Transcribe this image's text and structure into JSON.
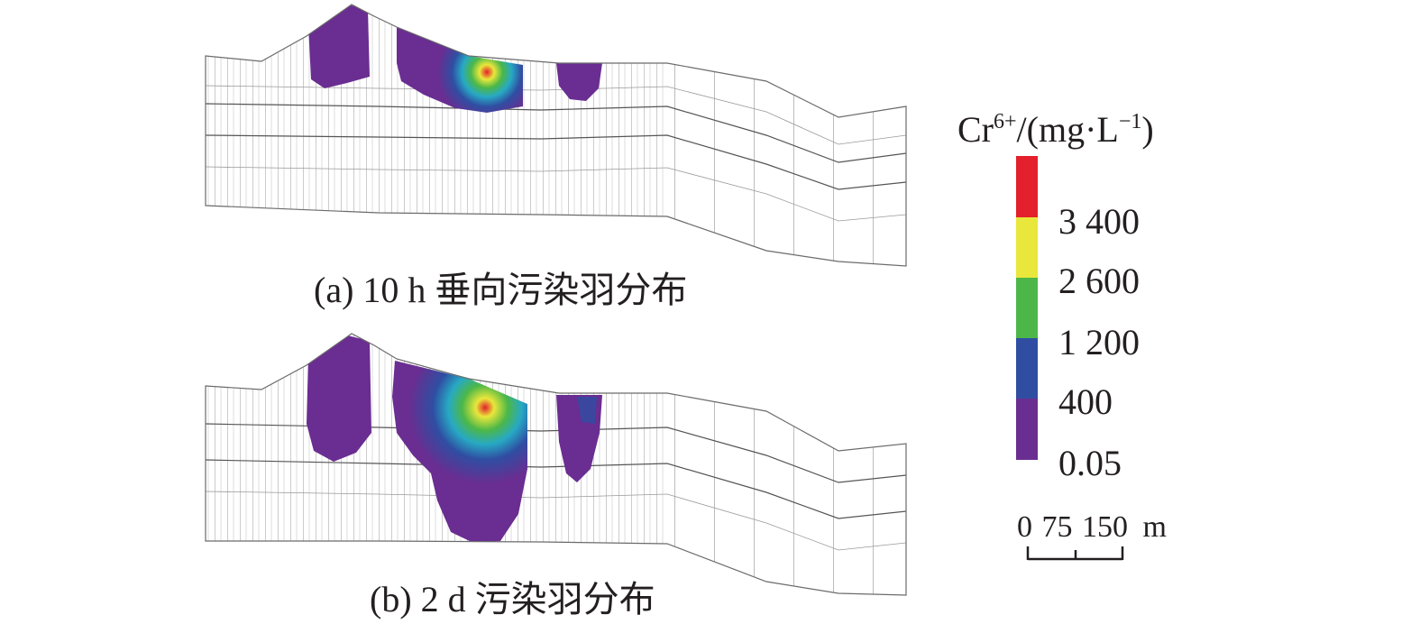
{
  "panel_a_caption": "(a) 10 h 垂向污染羽分布",
  "panel_b_caption": "(b) 2 d 污染羽分布",
  "legend": {
    "quantity": "Cr",
    "charge": "6+",
    "unit_open": "/(mg·L",
    "unit_exp": "−1",
    "unit_close": ")",
    "classes": [
      {
        "color": "#e3202b"
      },
      {
        "color": "#e9e73b"
      },
      {
        "color": "#4cb748"
      },
      {
        "color": "#2f4ea2"
      },
      {
        "color": "#6a2d91"
      }
    ],
    "tick_labels": [
      "3 400",
      "2 600",
      "1 200",
      "400",
      "0.05"
    ]
  },
  "scale_bar": {
    "ticks": [
      "0",
      "75",
      "150"
    ],
    "unit": "m"
  },
  "plume_colors": {
    "purple": "#6a2d91",
    "blue": "#2f4ea2",
    "cyan": "#27a9c4",
    "green": "#4cb748",
    "yellow": "#e9e73b",
    "red": "#e3202b"
  }
}
